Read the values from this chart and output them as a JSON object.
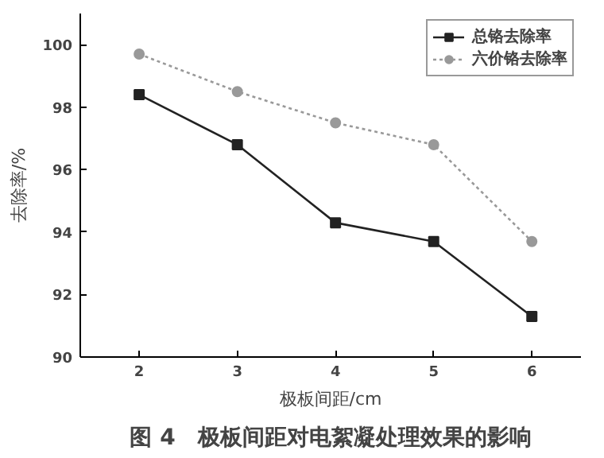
{
  "chart_data": {
    "type": "line",
    "title": "图 4　极板间距对电絮凝处理效果的影响",
    "xlabel": "极板间距/cm",
    "ylabel": "去除率/%",
    "x": [
      2,
      3,
      4,
      5,
      6
    ],
    "xlim": [
      1.4,
      6.5
    ],
    "xticks": [
      2,
      3,
      4,
      5,
      6
    ],
    "ylim": [
      90,
      101
    ],
    "yticks": [
      90,
      92,
      94,
      96,
      98,
      100
    ],
    "grid": false,
    "legend": "top right",
    "series": [
      {
        "name": "总铬去除率",
        "color": "#222222",
        "marker": "square",
        "line_style": "solid",
        "values": [
          98.4,
          96.8,
          94.3,
          93.7,
          91.3
        ]
      },
      {
        "name": "六价铬去除率",
        "color": "#999999",
        "marker": "circle",
        "line_style": "dotted",
        "values": [
          99.7,
          98.5,
          97.5,
          96.8,
          93.7
        ]
      }
    ]
  }
}
